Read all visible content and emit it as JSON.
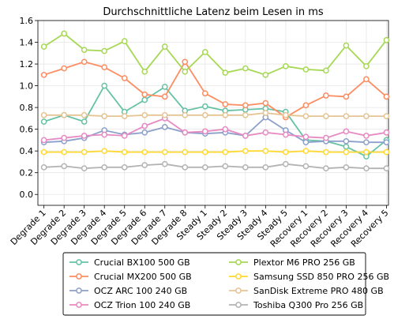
{
  "chart_data": {
    "type": "line",
    "title": "Durchschnittliche Latenz beim Lesen in ms",
    "xlabel": "",
    "ylabel": "",
    "ylim": [
      -0.1,
      1.6
    ],
    "yticks": [
      0.0,
      0.2,
      0.4,
      0.6,
      0.8,
      1.0,
      1.2,
      1.4,
      1.6
    ],
    "ytick_labels": [
      "0.0",
      "0.2",
      "0.4",
      "0.6",
      "0.8",
      "1.0",
      "1.2",
      "1.4",
      "1.6"
    ],
    "grid": true,
    "legend_position": "bottom",
    "categories": [
      "Degrade 1",
      "Degrade 2",
      "Degrade 3",
      "Degrade 4",
      "Degrade 5",
      "Degrade 6",
      "Degrade 7",
      "Degrade 8",
      "Steady 1",
      "Steady 2",
      "Steady 3",
      "Steady 4",
      "Steady 5",
      "Recovery 1",
      "Recovery 2",
      "Recovery 3",
      "Recovery 4",
      "Recovery 5"
    ],
    "series": [
      {
        "name": "Crucial BX100 500 GB",
        "color": "#66c2a5",
        "values": [
          0.67,
          0.73,
          0.67,
          1.0,
          0.76,
          0.87,
          0.99,
          0.77,
          0.81,
          0.77,
          0.78,
          0.79,
          0.76,
          0.5,
          0.49,
          0.44,
          0.35,
          0.5
        ]
      },
      {
        "name": "Crucial MX200 500 GB",
        "color": "#fc8d62",
        "values": [
          1.1,
          1.16,
          1.22,
          1.17,
          1.07,
          0.92,
          0.9,
          1.22,
          0.93,
          0.83,
          0.82,
          0.84,
          0.71,
          0.82,
          0.91,
          0.9,
          1.06,
          0.9
        ]
      },
      {
        "name": "OCZ ARC 100 240 GB",
        "color": "#8da0cb",
        "values": [
          0.48,
          0.49,
          0.52,
          0.59,
          0.55,
          0.57,
          0.62,
          0.57,
          0.56,
          0.57,
          0.54,
          0.71,
          0.59,
          0.48,
          0.49,
          0.49,
          0.48,
          0.48
        ]
      },
      {
        "name": "OCZ Trion 100 240 GB",
        "color": "#e78ac3",
        "values": [
          0.5,
          0.52,
          0.54,
          0.55,
          0.54,
          0.63,
          0.7,
          0.57,
          0.58,
          0.6,
          0.54,
          0.57,
          0.55,
          0.53,
          0.52,
          0.58,
          0.54,
          0.57
        ]
      },
      {
        "name": "Plextor M6 PRO 256 GB",
        "color": "#a6d854",
        "values": [
          1.36,
          1.48,
          1.33,
          1.32,
          1.41,
          1.13,
          1.36,
          1.13,
          1.31,
          1.12,
          1.16,
          1.1,
          1.18,
          1.15,
          1.14,
          1.37,
          1.18,
          1.42
        ]
      },
      {
        "name": "Samsung SSD 850 PRO 256 GB",
        "color": "#ffd92f",
        "values": [
          0.39,
          0.39,
          0.39,
          0.4,
          0.39,
          0.39,
          0.39,
          0.39,
          0.39,
          0.39,
          0.4,
          0.4,
          0.39,
          0.4,
          0.39,
          0.39,
          0.39,
          0.39
        ]
      },
      {
        "name": "SanDisk Extreme PRO 480 GB",
        "color": "#e5c494",
        "values": [
          0.73,
          0.73,
          0.73,
          0.72,
          0.72,
          0.73,
          0.73,
          0.73,
          0.73,
          0.73,
          0.73,
          0.75,
          0.73,
          0.72,
          0.72,
          0.72,
          0.72,
          0.72
        ]
      },
      {
        "name": "Toshiba Q300 Pro 256 GB",
        "color": "#b3b3b3",
        "values": [
          0.25,
          0.26,
          0.24,
          0.25,
          0.25,
          0.27,
          0.28,
          0.25,
          0.25,
          0.26,
          0.25,
          0.25,
          0.28,
          0.26,
          0.24,
          0.25,
          0.24,
          0.24
        ]
      }
    ]
  }
}
